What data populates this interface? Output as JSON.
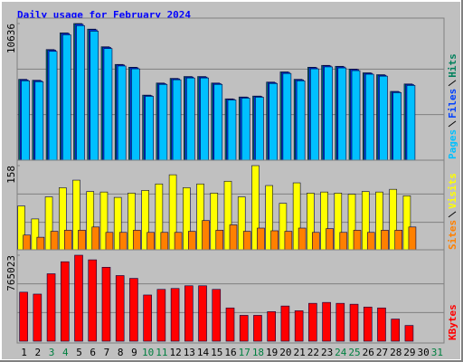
{
  "chart_data": [
    {
      "type": "bar",
      "title": "Daily usage for February 2024",
      "series": [
        {
          "name": "Hits",
          "color": "#00805c",
          "values": [
            6295,
            6222,
            8610,
            9912,
            10636,
            10202,
            8827,
            7452,
            7235,
            5065,
            6005,
            6367,
            6512,
            6512,
            6005,
            4775,
            4920,
            4992,
            6078,
            6873,
            6295,
            7235,
            7380,
            7308,
            7091,
            6801,
            6656,
            5354,
            5933,
            null,
            null
          ]
        },
        {
          "name": "Files",
          "color": "#0040ff",
          "values": [
            6250,
            6180,
            8560,
            9860,
            10580,
            10150,
            8780,
            7410,
            7190,
            5030,
            5960,
            6330,
            6470,
            6470,
            5970,
            4740,
            4890,
            4960,
            6040,
            6830,
            6250,
            7190,
            7340,
            7260,
            7050,
            6760,
            6610,
            5320,
            5890,
            null,
            null
          ]
        },
        {
          "name": "Pages",
          "color": "#00c0ff",
          "values": [
            6180,
            6110,
            8470,
            9760,
            10470,
            10040,
            8690,
            7330,
            7110,
            4970,
            5900,
            6260,
            6400,
            6400,
            5900,
            4690,
            4830,
            4900,
            5970,
            6750,
            6180,
            7110,
            7260,
            7180,
            6970,
            6690,
            6540,
            5260,
            5820,
            null,
            null
          ]
        }
      ],
      "ylim": [
        0,
        10636
      ],
      "yticks": [
        10636
      ]
    },
    {
      "type": "bar",
      "series": [
        {
          "name": "Visits",
          "color": "#ffff00",
          "values": [
            83,
            59,
            100,
            117,
            131,
            110,
            109,
            99,
            107,
            112,
            124,
            141,
            117,
            124,
            107,
            129,
            100,
            158,
            121,
            88,
            126,
            107,
            109,
            107,
            105,
            110,
            109,
            114,
            102,
            null,
            null
          ]
        },
        {
          "name": "Sites",
          "color": "#ff8000",
          "values": [
            29,
            25,
            36,
            38,
            38,
            44,
            34,
            34,
            38,
            34,
            34,
            34,
            36,
            56,
            38,
            48,
            36,
            42,
            37,
            36,
            42,
            34,
            41,
            34,
            38,
            34,
            38,
            38,
            44,
            null,
            null
          ]
        }
      ],
      "ylim": [
        0,
        158
      ],
      "yticks": [
        158
      ]
    },
    {
      "type": "bar",
      "categories": [
        "1",
        "2",
        "3",
        "4",
        "5",
        "6",
        "7",
        "8",
        "9",
        "10",
        "11",
        "12",
        "13",
        "14",
        "15",
        "16",
        "17",
        "18",
        "19",
        "20",
        "21",
        "22",
        "23",
        "24",
        "25",
        "26",
        "27",
        "28",
        "29",
        "30",
        "31"
      ],
      "category_colors": [
        "#000000",
        "#000000",
        "#008040",
        "#008040",
        "#000000",
        "#000000",
        "#000000",
        "#000000",
        "#000000",
        "#008040",
        "#008040",
        "#000000",
        "#000000",
        "#000000",
        "#000000",
        "#000000",
        "#008040",
        "#008040",
        "#000000",
        "#000000",
        "#000000",
        "#000000",
        "#000000",
        "#008040",
        "#008040",
        "#000000",
        "#000000",
        "#000000",
        "#000000",
        "#000000",
        "#008040"
      ],
      "series": [
        {
          "name": "KBytes",
          "color": "#ff0000",
          "values": [
            436000,
            419000,
            600000,
            707000,
            765023,
            724000,
            658000,
            584000,
            559000,
            411000,
            461000,
            469000,
            493000,
            493000,
            461000,
            296000,
            230000,
            230000,
            263000,
            313000,
            271000,
            337000,
            345000,
            337000,
            329000,
            304000,
            296000,
            197000,
            140000,
            null,
            null
          ]
        }
      ],
      "ylim": [
        0,
        765023
      ],
      "yticks": [
        765023
      ]
    }
  ]
}
